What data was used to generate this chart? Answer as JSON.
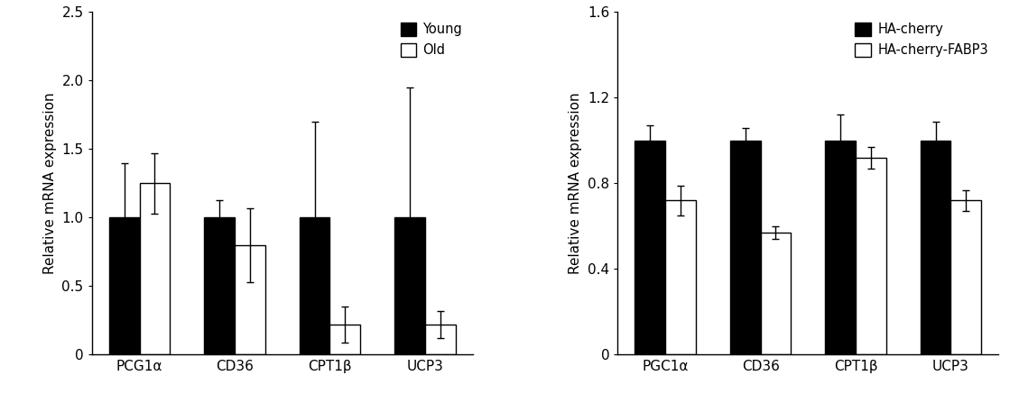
{
  "chart1": {
    "categories": [
      "PCG1α",
      "CD36",
      "CPT1β",
      "UCP3"
    ],
    "young_values": [
      1.0,
      1.0,
      1.0,
      1.0
    ],
    "old_values": [
      1.25,
      0.8,
      0.22,
      0.22
    ],
    "young_errors": [
      0.4,
      0.13,
      0.7,
      0.95
    ],
    "old_errors": [
      0.22,
      0.27,
      0.13,
      0.1
    ],
    "ylabel": "Relative mRNA expression",
    "ylim": [
      0,
      2.5
    ],
    "yticks": [
      0,
      0.5,
      1.0,
      1.5,
      2.0,
      2.5
    ],
    "yticklabels": [
      "0",
      "0.5",
      "1.0",
      "1.5",
      "2.0",
      "2.5"
    ],
    "legend1": "Young",
    "legend2": "Old"
  },
  "chart2": {
    "categories": [
      "PGC1α",
      "CD36",
      "CPT1β",
      "UCP3"
    ],
    "ha_cherry_values": [
      1.0,
      1.0,
      1.0,
      1.0
    ],
    "ha_fabp3_values": [
      0.72,
      0.57,
      0.92,
      0.72
    ],
    "ha_cherry_errors": [
      0.07,
      0.06,
      0.12,
      0.09
    ],
    "ha_fabp3_errors": [
      0.07,
      0.03,
      0.05,
      0.05
    ],
    "ylabel": "Relative mRNA expression",
    "ylim": [
      0,
      1.6
    ],
    "yticks": [
      0,
      0.4,
      0.8,
      1.2,
      1.6
    ],
    "yticklabels": [
      "0",
      "0.4",
      "0.8",
      "1.2",
      "1.6"
    ],
    "legend1": "HA-cherry",
    "legend2": "HA-cherry-FABP3"
  },
  "bar_width": 0.32,
  "black_color": "#000000",
  "white_color": "#ffffff",
  "edgecolor": "#000000",
  "fontsize_label": 11,
  "fontsize_tick": 11,
  "fontsize_legend": 10.5
}
